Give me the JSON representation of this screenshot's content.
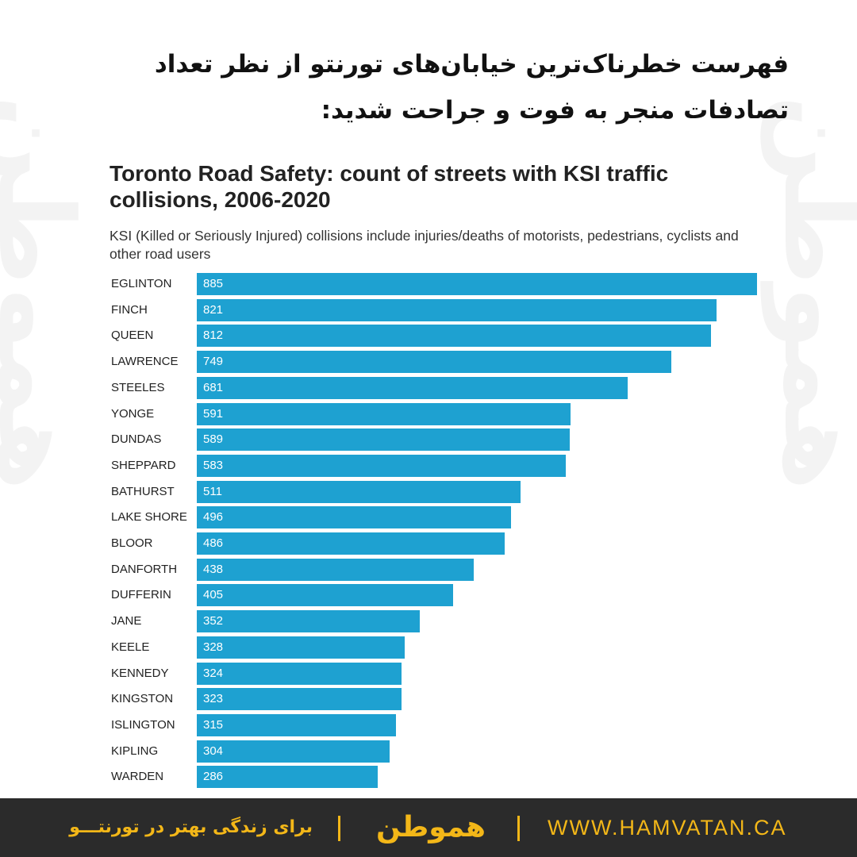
{
  "heading": {
    "text": "فهرست خطرناک‌ترین خیابان‌های تورنتو از نظر تعداد تصادفات منجر به فوت و جراحت شدید:"
  },
  "chart_data": {
    "type": "bar",
    "orientation": "horizontal",
    "title": "Toronto Road Safety: count of streets with KSI traffic collisions, 2006-2020",
    "subtitle": "KSI (Killed or Seriously Injured) collisions include injuries/deaths of motorists, pedestrians, cyclists and other road users",
    "xlabel": "",
    "ylabel": "",
    "xlim": [
      0,
      885
    ],
    "grid": false,
    "legend": "none",
    "bar_color": "#1ea1d1",
    "categories": [
      "EGLINTON",
      "FINCH",
      "QUEEN",
      "LAWRENCE",
      "STEELES",
      "YONGE",
      "DUNDAS",
      "SHEPPARD",
      "BATHURST",
      "LAKE SHORE",
      "BLOOR",
      "DANFORTH",
      "DUFFERIN",
      "JANE",
      "KEELE",
      "KENNEDY",
      "KINGSTON",
      "ISLINGTON",
      "KIPLING",
      "WARDEN"
    ],
    "values": [
      885,
      821,
      812,
      749,
      681,
      591,
      589,
      583,
      511,
      496,
      486,
      438,
      405,
      352,
      328,
      324,
      323,
      315,
      304,
      286
    ]
  },
  "footer": {
    "tagline": "برای زندگی بهتر در تورنتـــو",
    "logo_text": "هموطن",
    "url": "WWW.HAMVATAN.CA",
    "background_color": "#2b2b2b",
    "accent_color": "#f3b718"
  }
}
